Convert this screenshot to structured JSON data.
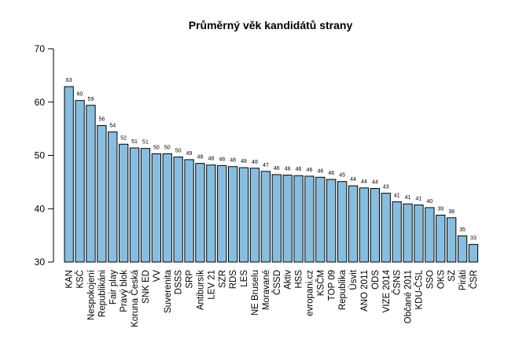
{
  "chart_data": {
    "type": "bar",
    "title": "Průměrný věk kandidátů strany",
    "xlabel": "",
    "ylabel": "",
    "ylim": [
      30,
      70
    ],
    "yticks": [
      30,
      40,
      50,
      60,
      70
    ],
    "bar_color": "#87bedf",
    "categories": [
      "KAN",
      "KSČ",
      "Nespokojení",
      "Republikáni",
      "Fair play",
      "Pravý blok",
      "Koruna Česká",
      "SNK ED",
      "VV",
      "Suverenita",
      "DSSS",
      "SRP",
      "Antibursík",
      "LEV 21",
      "SZR",
      "RDS",
      "LES",
      "NE Bruselu",
      "Moravané",
      "ČSSD",
      "Aktiv",
      "HSS",
      "evropani.cz",
      "KSČM",
      "TOP 09",
      "Republika",
      "Úsvit",
      "ANO 2011",
      "ODS",
      "VIZE 2014",
      "ČSNS",
      "Občané 2011",
      "KDU-ČSL",
      "SSO",
      "OKS",
      "SZ",
      "Piráti",
      "ČSR"
    ],
    "values": [
      62.9,
      60.3,
      59.4,
      55.6,
      54.4,
      52.1,
      51.4,
      51.3,
      50.3,
      50.3,
      49.7,
      49.2,
      48.5,
      48.2,
      48.1,
      47.9,
      47.7,
      47.6,
      47.0,
      46.4,
      46.3,
      46.2,
      46.1,
      45.9,
      45.5,
      45.1,
      44.3,
      43.9,
      43.8,
      42.9,
      41.3,
      40.9,
      40.7,
      40.2,
      38.8,
      38.3,
      34.9,
      33.3
    ],
    "labels": [
      "63",
      "60",
      "59",
      "56",
      "54",
      "52",
      "51",
      "51",
      "50",
      "50",
      "50",
      "49",
      "48",
      "48",
      "48",
      "48",
      "48",
      "48",
      "47",
      "46",
      "46",
      "46",
      "46",
      "46",
      "46",
      "45",
      "44",
      "44",
      "44",
      "43",
      "41",
      "41",
      "41",
      "40",
      "39",
      "38",
      "35",
      "33"
    ]
  }
}
